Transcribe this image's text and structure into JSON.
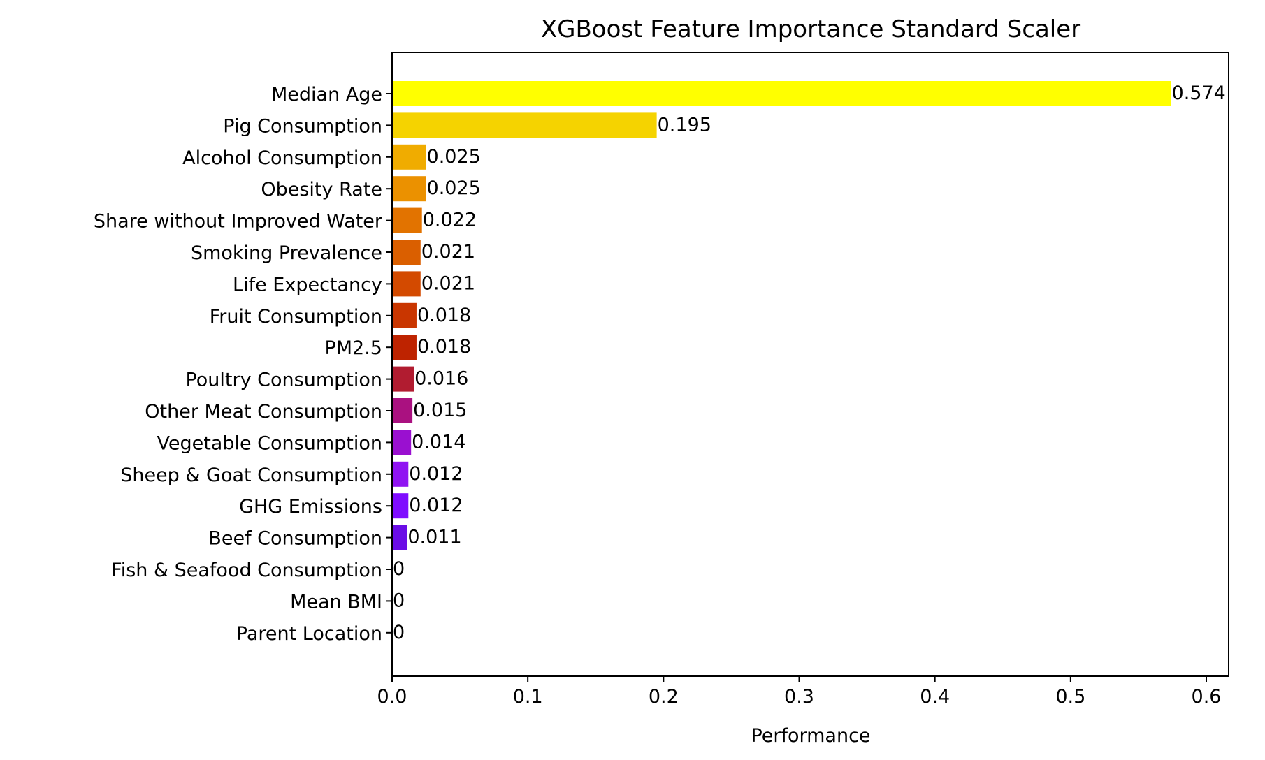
{
  "chart_data": {
    "type": "bar",
    "orientation": "horizontal",
    "title": "XGBoost Feature Importance Standard Scaler",
    "xlabel": "Performance",
    "ylabel": "",
    "xlim": [
      0.0,
      0.6
    ],
    "xticks": [
      "0.0",
      "0.1",
      "0.2",
      "0.3",
      "0.4",
      "0.5",
      "0.6"
    ],
    "grid": false,
    "categories": [
      "Median Age",
      "Pig Consumption",
      "Alcohol Consumption",
      "Obesity Rate",
      "Share without Improved Water",
      "Smoking Prevalence",
      "Life Expectancy",
      "Fruit Consumption",
      "PM2.5",
      "Poultry Consumption",
      "Other Meat Consumption",
      "Vegetable Consumption",
      "Sheep & Goat Consumption",
      "GHG Emissions",
      "Beef Consumption",
      "Fish & Seafood Consumption",
      "Mean BMI",
      "Parent Location"
    ],
    "values": [
      0.574,
      0.195,
      0.025,
      0.025,
      0.022,
      0.021,
      0.021,
      0.018,
      0.018,
      0.016,
      0.015,
      0.014,
      0.012,
      0.012,
      0.011,
      0,
      0,
      0
    ],
    "value_labels": [
      "0.574",
      "0.195",
      "0.025",
      "0.025",
      "0.022",
      "0.021",
      "0.021",
      "0.018",
      "0.018",
      "0.016",
      "0.015",
      "0.014",
      "0.012",
      "0.012",
      "0.011",
      "0",
      "0",
      "0"
    ],
    "colors": [
      "#ffff00",
      "#f5d300",
      "#f0ac00",
      "#eb9100",
      "#e27300",
      "#da5f00",
      "#d34a00",
      "#c93600",
      "#be2300",
      "#b11c30",
      "#aa1180",
      "#9a10d0",
      "#9014f2",
      "#7f0dff",
      "#6a0de6",
      "#4b0e8a",
      "#3a0a70",
      "#2a0860"
    ]
  }
}
